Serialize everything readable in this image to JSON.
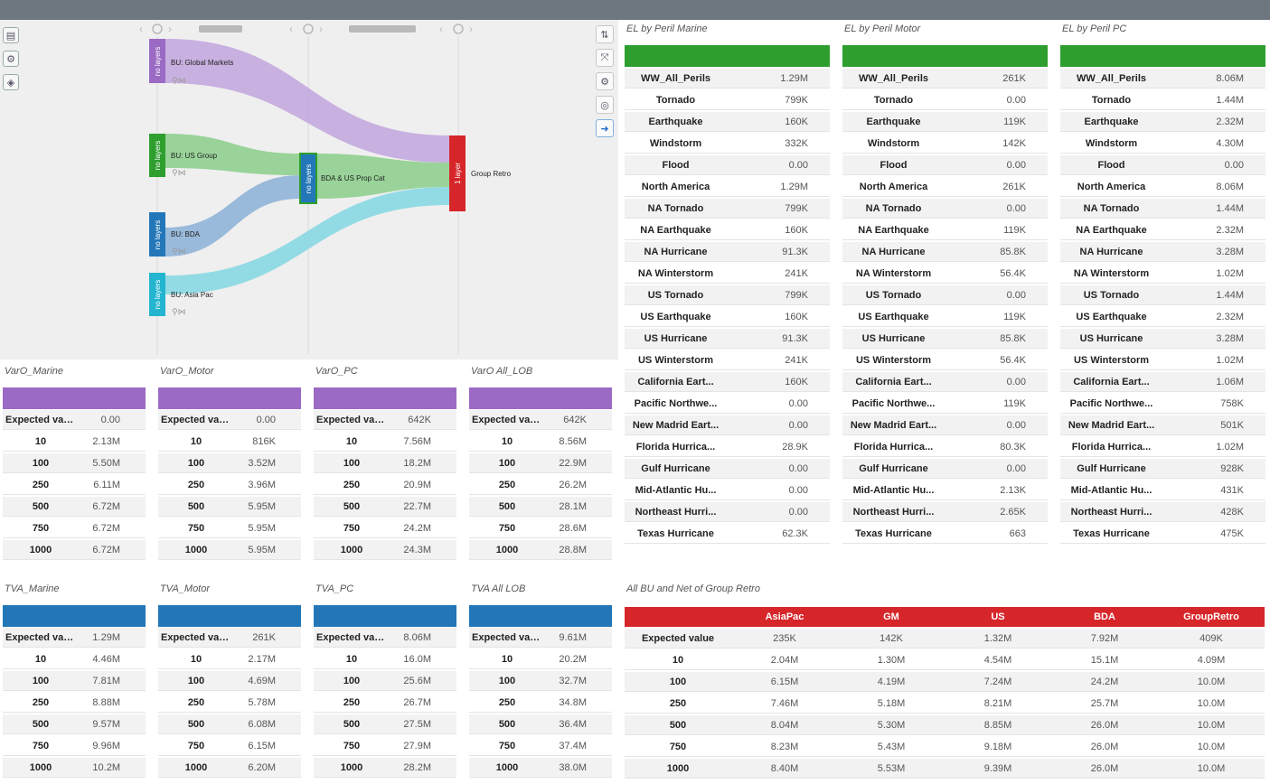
{
  "colors": {
    "purple": "#9a6ac4",
    "green": "#2e9f2e",
    "blue": "#2377b8",
    "red": "#d6262a",
    "cyan": "#23b5cf"
  },
  "flow": {
    "nodes": {
      "gm": {
        "side": "no layers",
        "label": "BU: Global Markets"
      },
      "us": {
        "side": "no layers",
        "label": "BU: US Group"
      },
      "bda": {
        "side": "no layers",
        "label": "BU: BDA"
      },
      "ap": {
        "side": "no layers",
        "label": "BU: Asia Pac"
      },
      "mid": {
        "side": "no layers",
        "label": "BDA & US Prop Cat"
      },
      "retro": {
        "side": "1 layer",
        "label": "Group Retro"
      }
    }
  },
  "el_tables": [
    {
      "title": "EL by Peril Marine",
      "rows": [
        {
          "label": "WW_All_Perils",
          "value": "1.29M"
        },
        {
          "label": "Tornado",
          "value": "799K"
        },
        {
          "label": "Earthquake",
          "value": "160K"
        },
        {
          "label": "Windstorm",
          "value": "332K"
        },
        {
          "label": "Flood",
          "value": "0.00"
        },
        {
          "label": "North America",
          "value": "1.29M"
        },
        {
          "label": "NA Tornado",
          "value": "799K"
        },
        {
          "label": "NA Earthquake",
          "value": "160K"
        },
        {
          "label": "NA Hurricane",
          "value": "91.3K"
        },
        {
          "label": "NA Winterstorm",
          "value": "241K"
        },
        {
          "label": "US Tornado",
          "value": "799K"
        },
        {
          "label": "US Earthquake",
          "value": "160K"
        },
        {
          "label": "US Hurricane",
          "value": "91.3K"
        },
        {
          "label": "US Winterstorm",
          "value": "241K"
        },
        {
          "label": "California Eart...",
          "value": "160K"
        },
        {
          "label": "Pacific Northwe...",
          "value": "0.00"
        },
        {
          "label": "New Madrid Eart...",
          "value": "0.00"
        },
        {
          "label": "Florida Hurrica...",
          "value": "28.9K"
        },
        {
          "label": "Gulf Hurricane",
          "value": "0.00"
        },
        {
          "label": "Mid-Atlantic Hu...",
          "value": "0.00"
        },
        {
          "label": "Northeast Hurri...",
          "value": "0.00"
        },
        {
          "label": "Texas Hurricane",
          "value": "62.3K"
        }
      ]
    },
    {
      "title": "EL by Peril Motor",
      "rows": [
        {
          "label": "WW_All_Perils",
          "value": "261K"
        },
        {
          "label": "Tornado",
          "value": "0.00"
        },
        {
          "label": "Earthquake",
          "value": "119K"
        },
        {
          "label": "Windstorm",
          "value": "142K"
        },
        {
          "label": "Flood",
          "value": "0.00"
        },
        {
          "label": "North America",
          "value": "261K"
        },
        {
          "label": "NA Tornado",
          "value": "0.00"
        },
        {
          "label": "NA Earthquake",
          "value": "119K"
        },
        {
          "label": "NA Hurricane",
          "value": "85.8K"
        },
        {
          "label": "NA Winterstorm",
          "value": "56.4K"
        },
        {
          "label": "US Tornado",
          "value": "0.00"
        },
        {
          "label": "US Earthquake",
          "value": "119K"
        },
        {
          "label": "US Hurricane",
          "value": "85.8K"
        },
        {
          "label": "US Winterstorm",
          "value": "56.4K"
        },
        {
          "label": "California Eart...",
          "value": "0.00"
        },
        {
          "label": "Pacific Northwe...",
          "value": "119K"
        },
        {
          "label": "New Madrid Eart...",
          "value": "0.00"
        },
        {
          "label": "Florida Hurrica...",
          "value": "80.3K"
        },
        {
          "label": "Gulf Hurricane",
          "value": "0.00"
        },
        {
          "label": "Mid-Atlantic Hu...",
          "value": "2.13K"
        },
        {
          "label": "Northeast Hurri...",
          "value": "2.65K"
        },
        {
          "label": "Texas Hurricane",
          "value": "663"
        }
      ]
    },
    {
      "title": "EL by Peril PC",
      "rows": [
        {
          "label": "WW_All_Perils",
          "value": "8.06M"
        },
        {
          "label": "Tornado",
          "value": "1.44M"
        },
        {
          "label": "Earthquake",
          "value": "2.32M"
        },
        {
          "label": "Windstorm",
          "value": "4.30M"
        },
        {
          "label": "Flood",
          "value": "0.00"
        },
        {
          "label": "North America",
          "value": "8.06M"
        },
        {
          "label": "NA Tornado",
          "value": "1.44M"
        },
        {
          "label": "NA Earthquake",
          "value": "2.32M"
        },
        {
          "label": "NA Hurricane",
          "value": "3.28M"
        },
        {
          "label": "NA Winterstorm",
          "value": "1.02M"
        },
        {
          "label": "US Tornado",
          "value": "1.44M"
        },
        {
          "label": "US Earthquake",
          "value": "2.32M"
        },
        {
          "label": "US Hurricane",
          "value": "3.28M"
        },
        {
          "label": "US Winterstorm",
          "value": "1.02M"
        },
        {
          "label": "California Eart...",
          "value": "1.06M"
        },
        {
          "label": "Pacific Northwe...",
          "value": "758K"
        },
        {
          "label": "New Madrid Eart...",
          "value": "501K"
        },
        {
          "label": "Florida Hurrica...",
          "value": "1.02M"
        },
        {
          "label": "Gulf Hurricane",
          "value": "928K"
        },
        {
          "label": "Mid-Atlantic Hu...",
          "value": "431K"
        },
        {
          "label": "Northeast Hurri...",
          "value": "428K"
        },
        {
          "label": "Texas Hurricane",
          "value": "475K"
        }
      ]
    }
  ],
  "var_tables": [
    {
      "title": "VarO_Marine",
      "rows": [
        {
          "label": "Expected value",
          "value": "0.00"
        },
        {
          "label": "10",
          "value": "2.13M"
        },
        {
          "label": "100",
          "value": "5.50M"
        },
        {
          "label": "250",
          "value": "6.11M"
        },
        {
          "label": "500",
          "value": "6.72M"
        },
        {
          "label": "750",
          "value": "6.72M"
        },
        {
          "label": "1000",
          "value": "6.72M"
        }
      ]
    },
    {
      "title": "VarO_Motor",
      "rows": [
        {
          "label": "Expected value",
          "value": "0.00"
        },
        {
          "label": "10",
          "value": "816K"
        },
        {
          "label": "100",
          "value": "3.52M"
        },
        {
          "label": "250",
          "value": "3.96M"
        },
        {
          "label": "500",
          "value": "5.95M"
        },
        {
          "label": "750",
          "value": "5.95M"
        },
        {
          "label": "1000",
          "value": "5.95M"
        }
      ]
    },
    {
      "title": "VarO_PC",
      "rows": [
        {
          "label": "Expected value",
          "value": "642K"
        },
        {
          "label": "10",
          "value": "7.56M"
        },
        {
          "label": "100",
          "value": "18.2M"
        },
        {
          "label": "250",
          "value": "20.9M"
        },
        {
          "label": "500",
          "value": "22.7M"
        },
        {
          "label": "750",
          "value": "24.2M"
        },
        {
          "label": "1000",
          "value": "24.3M"
        }
      ]
    },
    {
      "title": "VarO All_LOB",
      "rows": [
        {
          "label": "Expected value",
          "value": "642K"
        },
        {
          "label": "10",
          "value": "8.56M"
        },
        {
          "label": "100",
          "value": "22.9M"
        },
        {
          "label": "250",
          "value": "26.2M"
        },
        {
          "label": "500",
          "value": "28.1M"
        },
        {
          "label": "750",
          "value": "28.6M"
        },
        {
          "label": "1000",
          "value": "28.8M"
        }
      ]
    }
  ],
  "tva_tables": [
    {
      "title": "TVA_Marine",
      "rows": [
        {
          "label": "Expected value",
          "value": "1.29M"
        },
        {
          "label": "10",
          "value": "4.46M"
        },
        {
          "label": "100",
          "value": "7.81M"
        },
        {
          "label": "250",
          "value": "8.88M"
        },
        {
          "label": "500",
          "value": "9.57M"
        },
        {
          "label": "750",
          "value": "9.96M"
        },
        {
          "label": "1000",
          "value": "10.2M"
        }
      ]
    },
    {
      "title": "TVA_Motor",
      "rows": [
        {
          "label": "Expected value",
          "value": "261K"
        },
        {
          "label": "10",
          "value": "2.17M"
        },
        {
          "label": "100",
          "value": "4.69M"
        },
        {
          "label": "250",
          "value": "5.78M"
        },
        {
          "label": "500",
          "value": "6.08M"
        },
        {
          "label": "750",
          "value": "6.15M"
        },
        {
          "label": "1000",
          "value": "6.20M"
        }
      ]
    },
    {
      "title": "TVA_PC",
      "rows": [
        {
          "label": "Expected value",
          "value": "8.06M"
        },
        {
          "label": "10",
          "value": "16.0M"
        },
        {
          "label": "100",
          "value": "25.6M"
        },
        {
          "label": "250",
          "value": "26.7M"
        },
        {
          "label": "500",
          "value": "27.5M"
        },
        {
          "label": "750",
          "value": "27.9M"
        },
        {
          "label": "1000",
          "value": "28.2M"
        }
      ]
    },
    {
      "title": "TVA All LOB",
      "rows": [
        {
          "label": "Expected value",
          "value": "9.61M"
        },
        {
          "label": "10",
          "value": "20.2M"
        },
        {
          "label": "100",
          "value": "32.7M"
        },
        {
          "label": "250",
          "value": "34.8M"
        },
        {
          "label": "500",
          "value": "36.4M"
        },
        {
          "label": "750",
          "value": "37.4M"
        },
        {
          "label": "1000",
          "value": "38.0M"
        }
      ]
    }
  ],
  "all_bu": {
    "title": "All BU and Net of Group Retro",
    "columns": [
      "AsiaPac",
      "GM",
      "US",
      "BDA",
      "GroupRetro"
    ],
    "rows": [
      {
        "label": "Expected value",
        "values": [
          "235K",
          "142K",
          "1.32M",
          "7.92M",
          "409K"
        ]
      },
      {
        "label": "10",
        "values": [
          "2.04M",
          "1.30M",
          "4.54M",
          "15.1M",
          "4.09M"
        ]
      },
      {
        "label": "100",
        "values": [
          "6.15M",
          "4.19M",
          "7.24M",
          "24.2M",
          "10.0M"
        ]
      },
      {
        "label": "250",
        "values": [
          "7.46M",
          "5.18M",
          "8.21M",
          "25.7M",
          "10.0M"
        ]
      },
      {
        "label": "500",
        "values": [
          "8.04M",
          "5.30M",
          "8.85M",
          "26.0M",
          "10.0M"
        ]
      },
      {
        "label": "750",
        "values": [
          "8.23M",
          "5.43M",
          "9.18M",
          "26.0M",
          "10.0M"
        ]
      },
      {
        "label": "1000",
        "values": [
          "8.40M",
          "5.53M",
          "9.39M",
          "26.0M",
          "10.0M"
        ]
      }
    ]
  }
}
